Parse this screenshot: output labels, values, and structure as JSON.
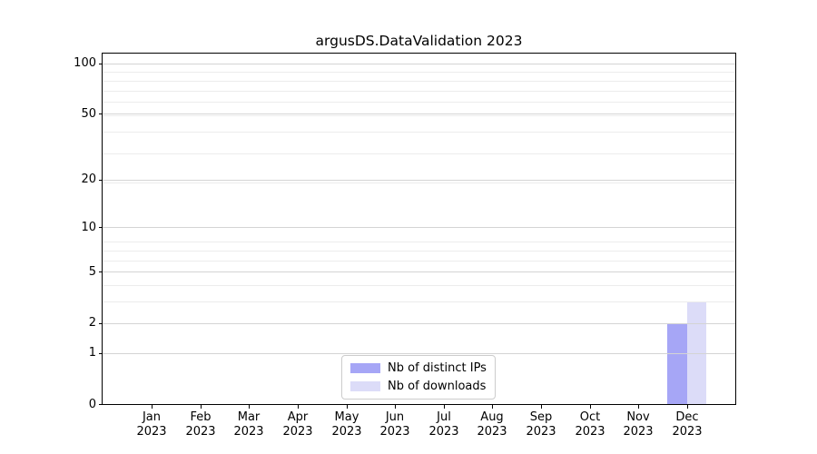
{
  "chart_data": {
    "type": "bar",
    "title": "argusDS.DataValidation 2023",
    "xlabel": "",
    "ylabel": "",
    "categories_months": [
      "Jan",
      "Feb",
      "Mar",
      "Apr",
      "May",
      "Jun",
      "Jul",
      "Aug",
      "Sep",
      "Oct",
      "Nov",
      "Dec"
    ],
    "categories_year": "2023",
    "series": [
      {
        "name": "Nb of distinct IPs",
        "color": "#a6a6f6",
        "values": [
          0,
          0,
          0,
          0,
          0,
          0,
          0,
          0,
          0,
          0,
          0,
          2
        ]
      },
      {
        "name": "Nb of downloads",
        "color": "#dcdcf8",
        "values": [
          0,
          0,
          0,
          0,
          0,
          0,
          0,
          0,
          0,
          0,
          0,
          3
        ]
      }
    ],
    "yscale": "log1p",
    "ylim": [
      0,
      114.4
    ],
    "yticks": [
      0,
      1,
      2,
      5,
      10,
      20,
      50,
      100
    ],
    "minor_yticks": [
      3,
      4,
      6,
      7,
      8,
      19,
      29,
      39,
      49,
      59,
      69,
      79,
      89
    ],
    "grid": "horizontal, major and minor, drawn above bars",
    "legend": {
      "position": "lower center",
      "labels": [
        "Nb of distinct IPs",
        "Nb of downloads"
      ]
    }
  }
}
